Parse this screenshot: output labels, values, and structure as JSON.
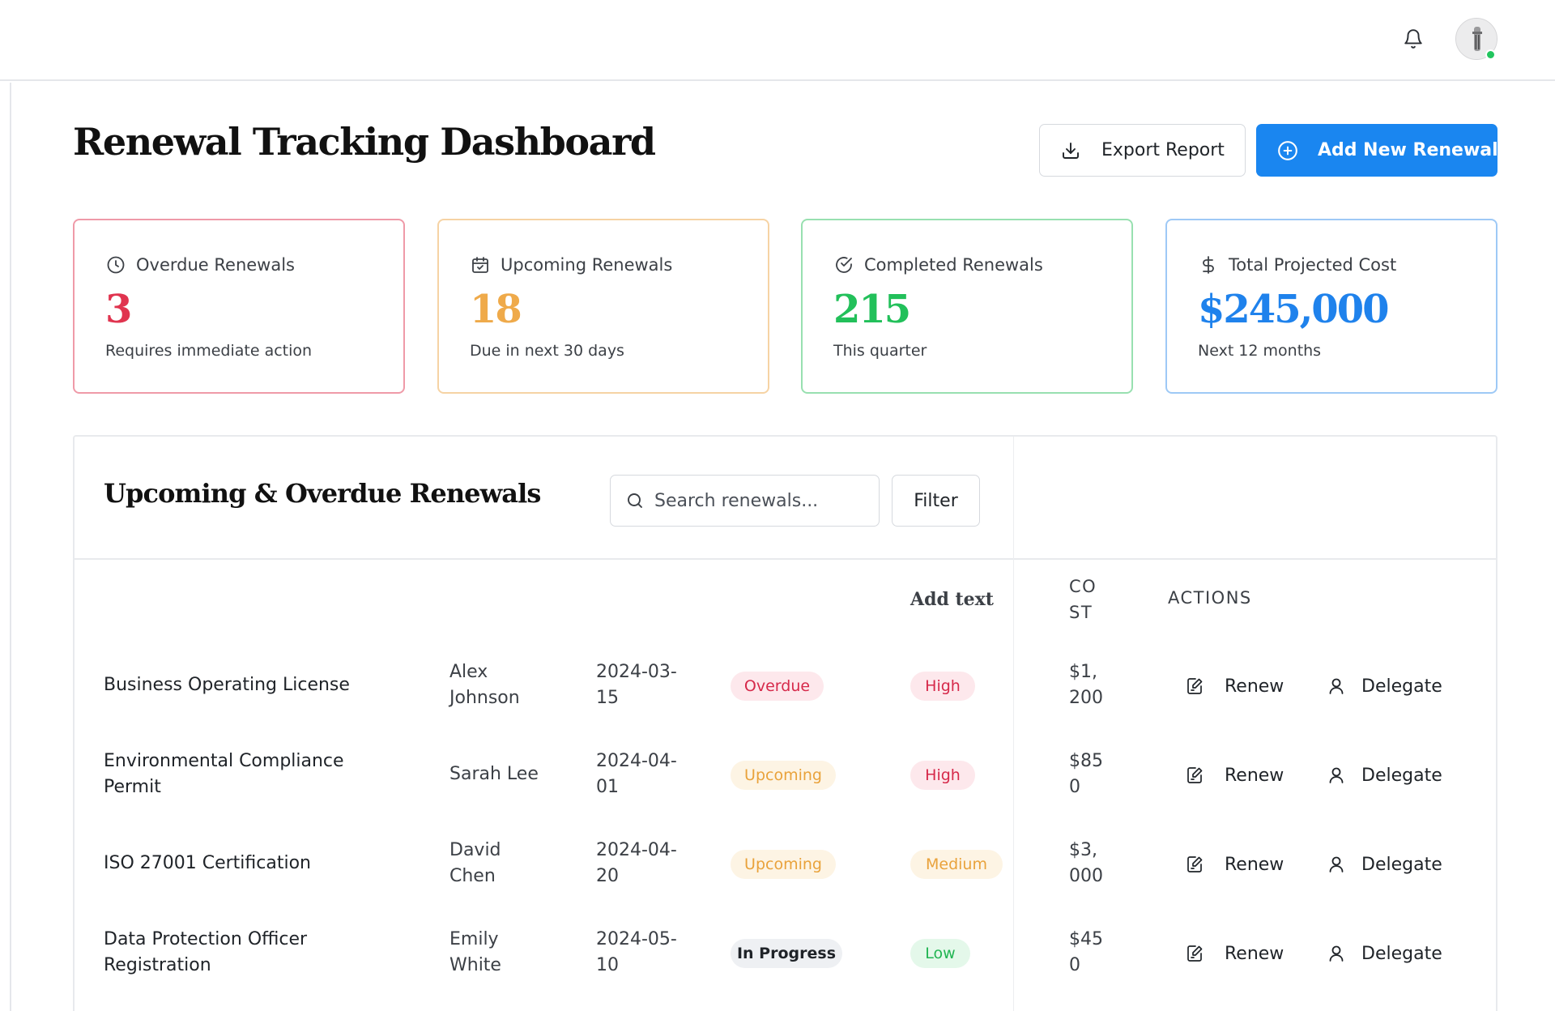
{
  "header": {
    "notifications_icon": "bell-icon",
    "user_status_color": "#22c55e"
  },
  "page": {
    "title": "Renewal Tracking Dashboard",
    "export_label": "Export Report",
    "add_label": "Add New Renewal"
  },
  "stats": [
    {
      "label": "Overdue Renewals",
      "value": "3",
      "sub": "Requires immediate action",
      "icon": "clock-icon",
      "color": "#e0344f"
    },
    {
      "label": "Upcoming Renewals",
      "value": "18",
      "sub": "Due in next 30 days",
      "icon": "calendar-icon",
      "color": "#efaa4a"
    },
    {
      "label": "Completed Renewals",
      "value": "215",
      "sub": "This quarter",
      "icon": "check-circle-icon",
      "color": "#22c05a"
    },
    {
      "label": "Total Projected Cost",
      "value": "$245,000",
      "sub": "Next 12 months",
      "icon": "dollar-icon",
      "color": "#1f82ec"
    }
  ],
  "renewals": {
    "title": "Upcoming & Overdue Renewals",
    "search_placeholder": "Search renewals...",
    "filter_label": "Filter",
    "columns": {
      "addtext": "Add text",
      "cost": "CO ST",
      "actions": "ACTIONS"
    },
    "rows": [
      {
        "name": "Business Operating License",
        "owner": "Alex Johnson",
        "date": "2024-03-15",
        "status": "Overdue",
        "priority": "High",
        "cost": "$1,200",
        "renew": "Renew",
        "delegate": "Delegate"
      },
      {
        "name": "Environmental Compliance Permit",
        "owner": "Sarah Lee",
        "date": "2024-04-01",
        "status": "Upcoming",
        "priority": "High",
        "cost": "$850",
        "renew": "Renew",
        "delegate": "Delegate"
      },
      {
        "name": "ISO 27001 Certification",
        "owner": "David Chen",
        "date": "2024-04-20",
        "status": "Upcoming",
        "priority": "Medium",
        "cost": "$3,000",
        "renew": "Renew",
        "delegate": "Delegate"
      },
      {
        "name": "Data Protection Officer Registration",
        "owner": "Emily White",
        "date": "2024-05-10",
        "status": "In Progress",
        "priority": "Low",
        "cost": "$450",
        "renew": "Renew",
        "delegate": "Delegate"
      }
    ]
  }
}
